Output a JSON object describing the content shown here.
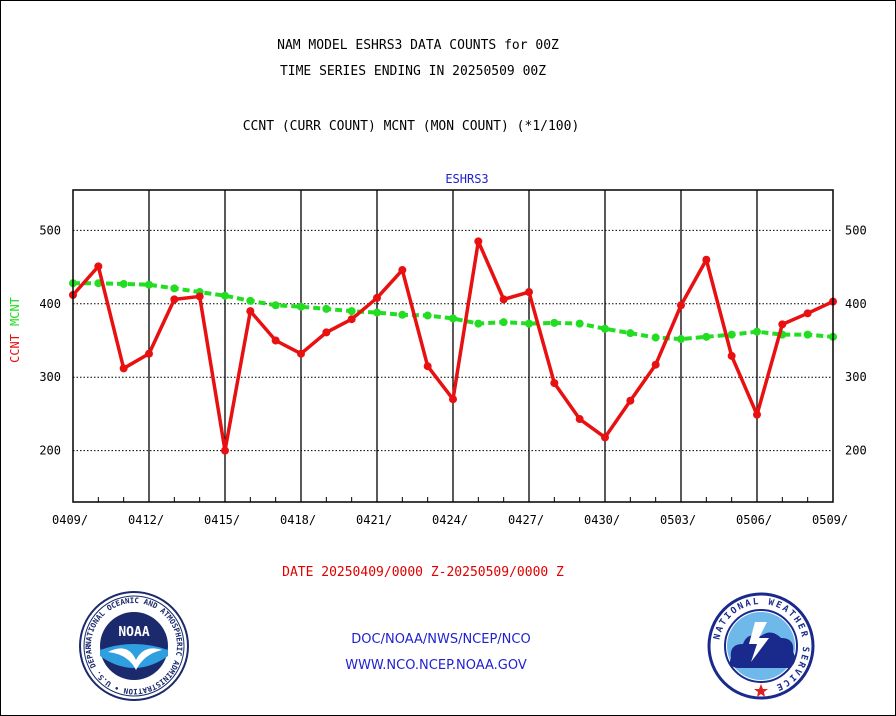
{
  "header": {
    "title_line1": "NAM MODEL ESHRS3 DATA COUNTS for 00Z",
    "title_line2": "TIME SERIES ENDING IN 20250509 00Z",
    "subtitle": "CCNT (CURR COUNT) MCNT (MON COUNT) (*1/100)"
  },
  "footer": {
    "date_range": "DATE 20250409/0000 Z-20250509/0000 Z",
    "credit_line1": "DOC/NOAA/NWS/NCEP/NCO",
    "credit_line2": "WWW.NCO.NCEP.NOAA.GOV"
  },
  "logos": {
    "noaa_text": "NOAA",
    "noaa_ring": "NATIONAL OCEANIC AND ATMOSPHERIC ADMINISTRATION • U.S. DEPARTMENT OF COMMERCE •",
    "nws_ring": "NATIONAL WEATHER SERVICE"
  },
  "colors": {
    "ccnt": "#e81010",
    "mcnt": "#22dd22",
    "panel_label": "#1f1fd0",
    "axis": "#000000"
  },
  "chart_data": {
    "type": "line",
    "panel_title": "ESHRS3",
    "ylabel_parts": [
      {
        "text": "CCNT",
        "color": "#e81010"
      },
      {
        "text": "MCNT",
        "color": "#22dd22"
      }
    ],
    "x_day_offsets": [
      0,
      1,
      2,
      3,
      4,
      5,
      6,
      7,
      8,
      9,
      10,
      11,
      12,
      13,
      14,
      15,
      16,
      17,
      18,
      19,
      20,
      21,
      22,
      23,
      24,
      25,
      26,
      27,
      28,
      29,
      30
    ],
    "tick_labels": [
      "0409/",
      "0412/",
      "0415/",
      "0418/",
      "0421/",
      "0424/",
      "0427/",
      "0430/",
      "0503/",
      "0506/",
      "0509/"
    ],
    "tick_day_offsets": [
      0,
      3,
      6,
      9,
      12,
      15,
      18,
      21,
      24,
      27,
      30
    ],
    "ylim": [
      130,
      555
    ],
    "yticks": [
      200,
      300,
      400,
      500
    ],
    "grid": true,
    "series": [
      {
        "name": "CCNT",
        "values": [
          412,
          451,
          312,
          332,
          406,
          410,
          200,
          390,
          350,
          332,
          361,
          379,
          408,
          446,
          315,
          270,
          485,
          406,
          416,
          292,
          243,
          218,
          268,
          317,
          398,
          460,
          329,
          249,
          372,
          387,
          403
        ]
      },
      {
        "name": "MCNT",
        "values": [
          428,
          428,
          427,
          426,
          421,
          416,
          411,
          404,
          398,
          396,
          393,
          390,
          388,
          385,
          384,
          380,
          373,
          375,
          373,
          374,
          373,
          366,
          360,
          354,
          352,
          355,
          358,
          362,
          358,
          358,
          355
        ]
      }
    ]
  }
}
